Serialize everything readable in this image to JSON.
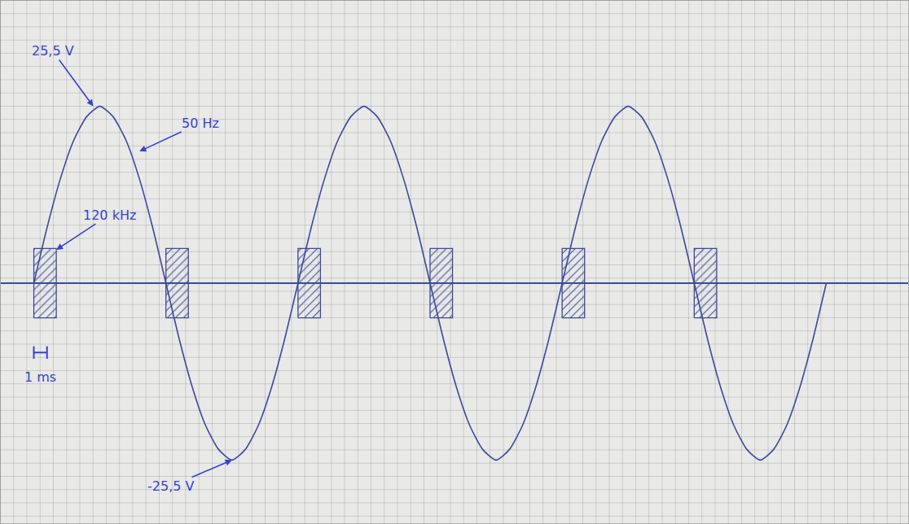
{
  "chart_data": {
    "type": "line",
    "x": [
      0,
      1,
      2,
      3,
      4,
      5,
      6,
      7,
      8,
      9,
      10,
      11,
      12,
      13,
      14,
      15,
      16,
      17,
      18,
      19,
      20,
      21,
      22,
      23,
      24,
      25,
      26,
      27,
      28,
      29,
      30,
      31,
      32,
      33,
      34,
      35,
      36,
      37,
      38,
      39,
      40,
      41,
      42,
      43,
      44,
      45,
      46,
      47,
      48,
      49,
      50,
      51,
      52,
      53,
      54,
      55,
      56,
      57,
      58,
      59,
      60
    ],
    "values": [
      0,
      8,
      15,
      20.5,
      24,
      25.5,
      24,
      20.5,
      15,
      8,
      0,
      -8,
      -15,
      -20.5,
      -24,
      -25.5,
      -24,
      -20.5,
      -15,
      -8,
      0,
      8,
      15,
      20.5,
      24,
      25.5,
      24,
      20.5,
      15,
      8,
      0,
      -8,
      -15,
      -20.5,
      -24,
      -25.5,
      -24,
      -20.5,
      -15,
      -8,
      0,
      8,
      15,
      20.5,
      24,
      25.5,
      24,
      20.5,
      15,
      8,
      0,
      -8,
      -15,
      -20.5,
      -24,
      -25.5,
      -24,
      -20.5,
      -15,
      -8,
      0
    ],
    "color": "#3b4a9c",
    "bursts": {
      "start": [
        0,
        10,
        20,
        30,
        40,
        50
      ],
      "duration": 1.7,
      "amplitude": 5,
      "color": "#3b4a9c"
    },
    "annotations": [
      {
        "text": "25,5 V",
        "x": 4.5,
        "y": 25.5
      },
      {
        "text": "50 Hz",
        "x": 8,
        "y": 19
      },
      {
        "text": "120 kHz",
        "x": 1.7,
        "y": 4.8
      },
      {
        "text": "-25,5 V",
        "x": 15,
        "y": -25.5
      }
    ],
    "scale_bar": {
      "text": "1 ms",
      "length": 1
    },
    "xlim": [
      -2.5,
      66.2
    ],
    "ylim": [
      -34.6,
      40.7
    ],
    "tick_labels": false,
    "grid": true
  }
}
